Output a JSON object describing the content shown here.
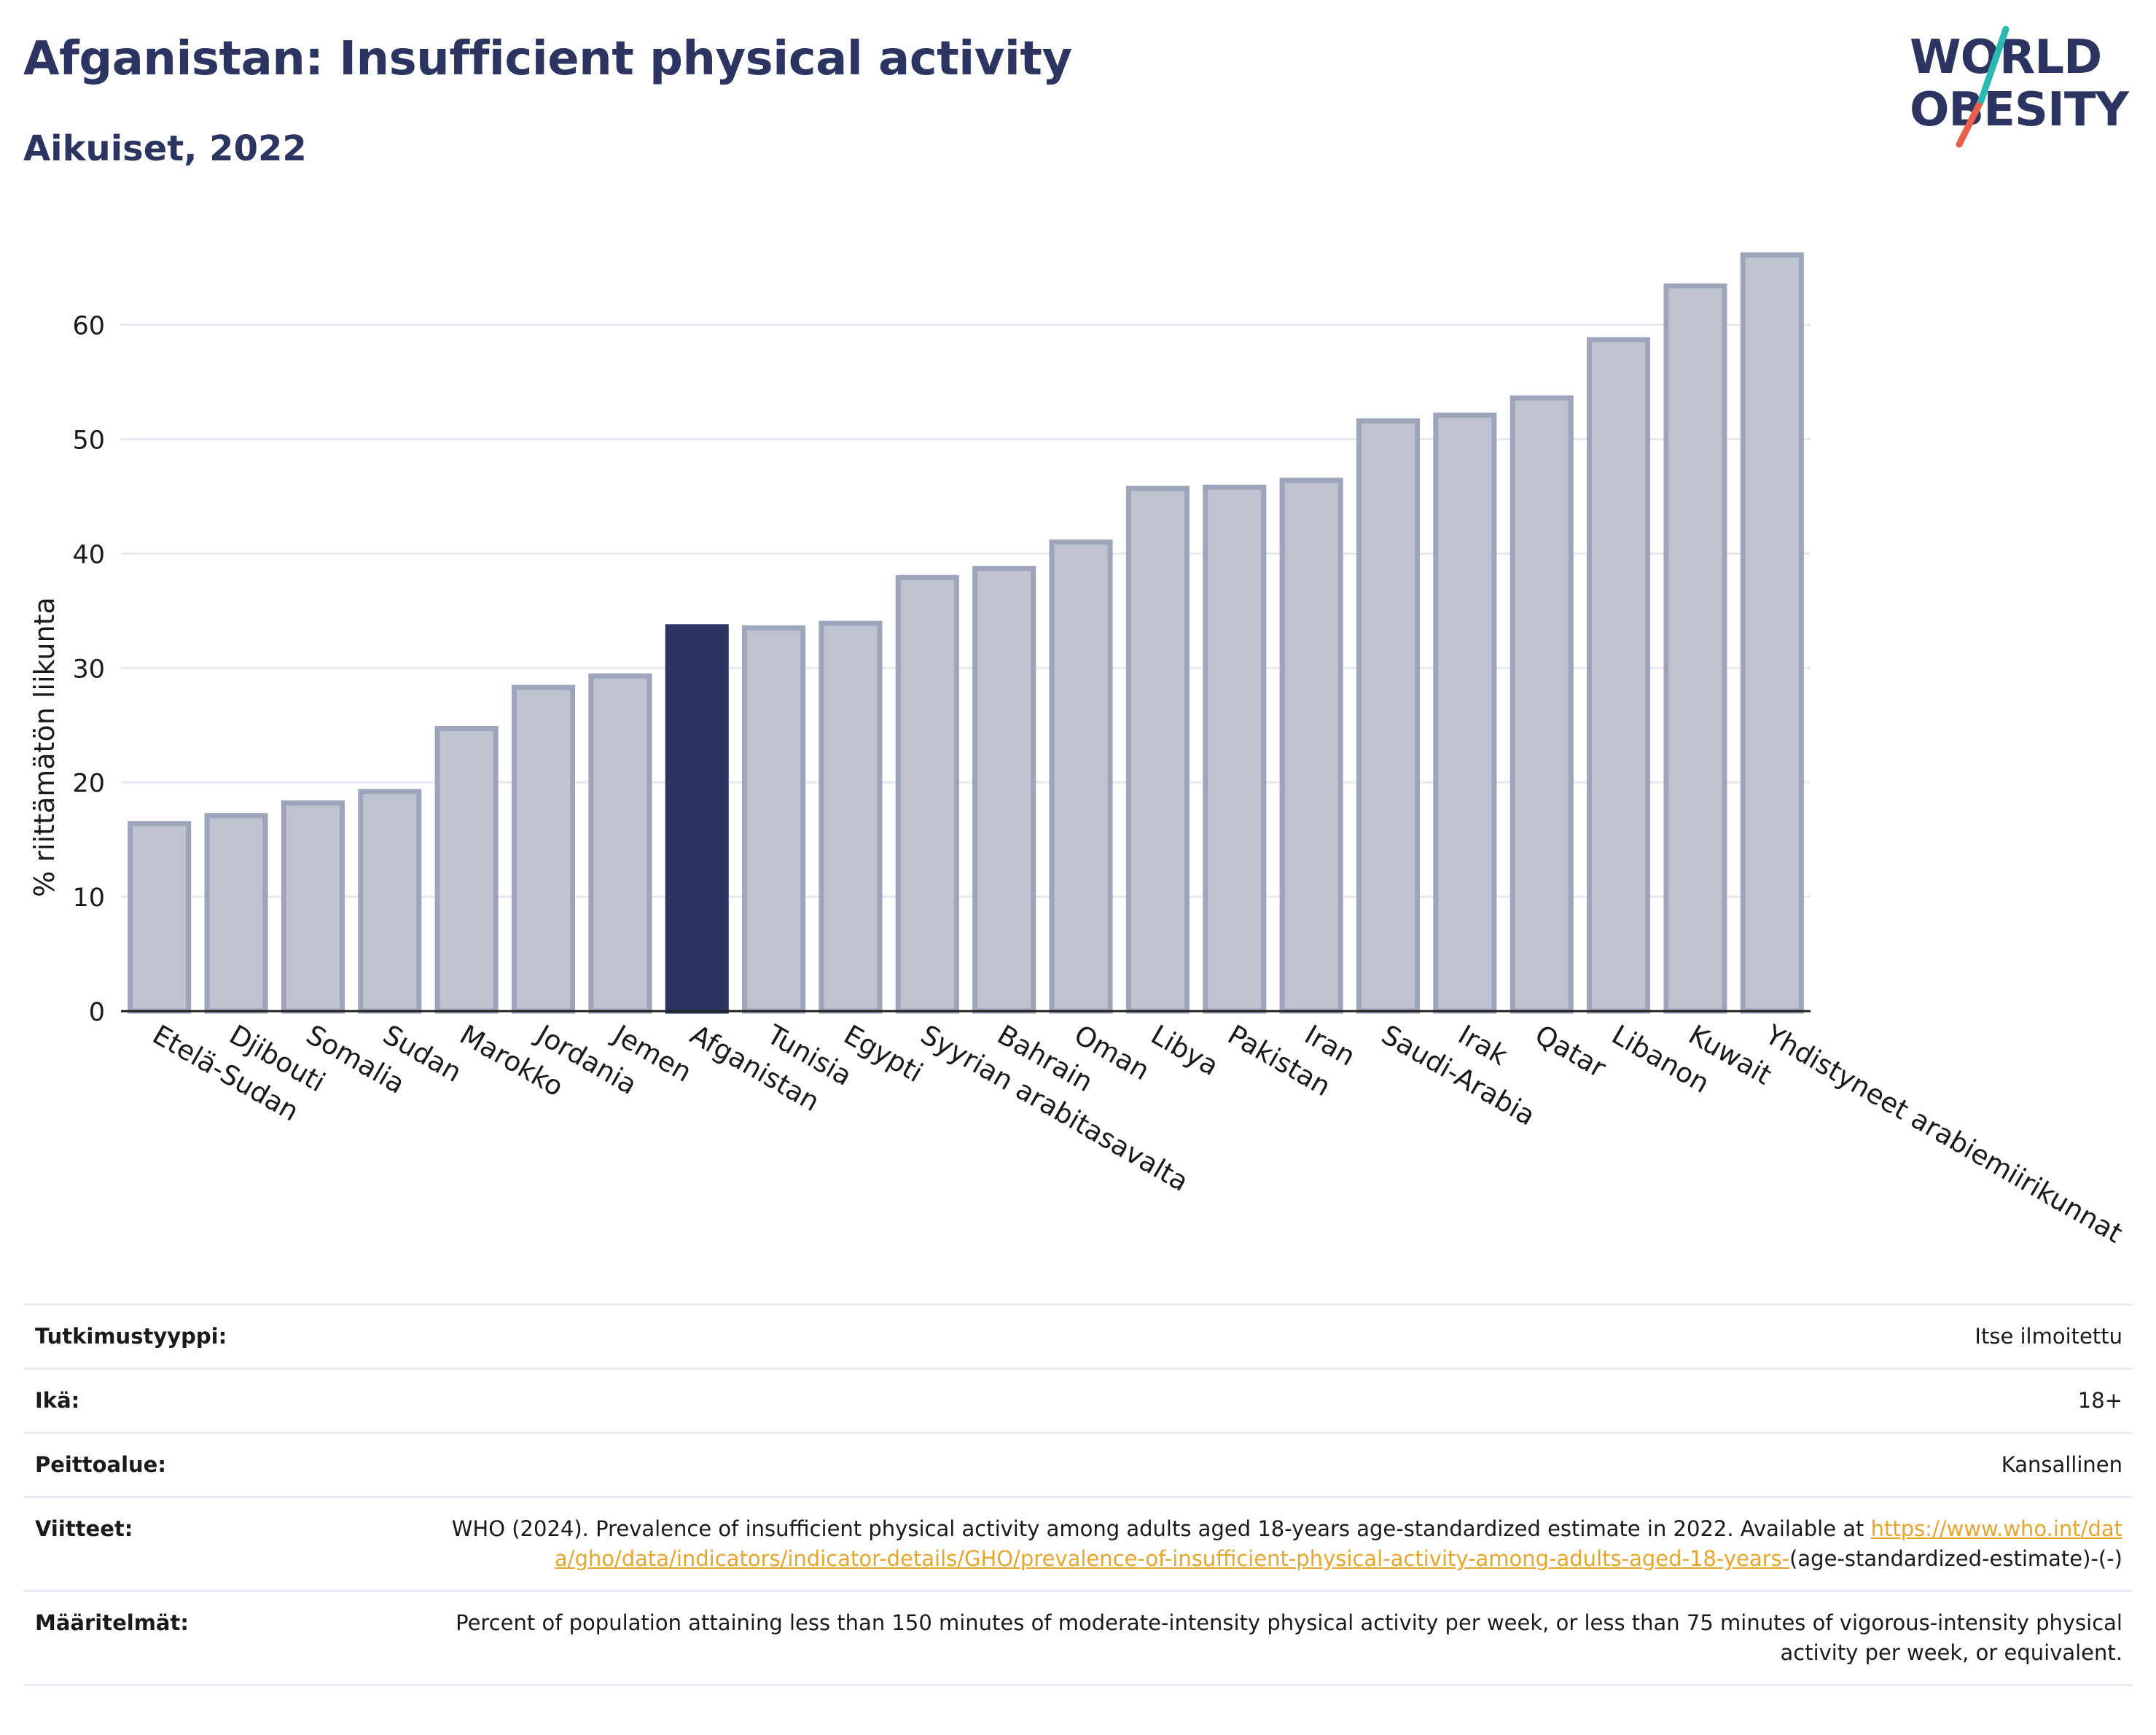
{
  "header": {
    "title": "Afganistan: Insufficient physical activity",
    "subtitle": "Aikuiset, 2022"
  },
  "logo": {
    "line1": "WORLD",
    "line2": "OBESITY"
  },
  "colors": {
    "highlight": "#2c3561",
    "bar": "#bfc3d0",
    "bar_border": "#9ea4b9",
    "grid": "#e6e8ef",
    "link": "#e8a52c"
  },
  "chart_data": {
    "type": "bar",
    "ylabel": "% riittämätön liikunta",
    "ylim": [
      0,
      68
    ],
    "yticks": [
      0,
      10,
      20,
      30,
      40,
      50,
      60
    ],
    "grid": true,
    "highlight_category": "Afganistan",
    "categories": [
      "Etelä-Sudan",
      "Djibouti",
      "Somalia",
      "Sudan",
      "Marokko",
      "Jordania",
      "Jemen",
      "Afganistan",
      "Tunisia",
      "Egypti",
      "Syyrian arabitasavalta",
      "Bahrain",
      "Oman",
      "Libya",
      "Pakistan",
      "Iran",
      "Saudi-Arabia",
      "Irak",
      "Qatar",
      "Libanon",
      "Kuwait",
      "Yhdistyneet arabiemiirikunnat"
    ],
    "values": [
      16.4,
      17.1,
      18.2,
      19.2,
      24.7,
      28.3,
      29.3,
      33.6,
      33.5,
      33.9,
      37.9,
      38.7,
      41.0,
      45.7,
      45.8,
      46.4,
      51.6,
      52.1,
      53.6,
      58.7,
      63.4,
      66.1
    ]
  },
  "info": {
    "rows": [
      {
        "label": "Tutkimustyyppi:",
        "value": "Itse ilmoitettu"
      },
      {
        "label": "Ikä:",
        "value": "18+"
      },
      {
        "label": "Peittoalue:",
        "value": "Kansallinen"
      },
      {
        "label": "Viitteet:",
        "value_pre": "WHO (2024). Prevalence of insufficient physical activity among adults aged 18-years age-standardized estimate in 2022. Available at ",
        "link": "https://www.who.int/data/gho/data/indicators/indicator-details/GHO/prevalence-of-insufficient-physical-activity-among-adults-aged-18-years-",
        "value_post": "(age-standardized-estimate)-(-)"
      },
      {
        "label": "Määritelmät:",
        "value": "Percent of population attaining less than 150 minutes of moderate-intensity physical activity per week, or less than 75 minutes of vigorous-intensity physical activity per week, or equivalent."
      }
    ]
  }
}
